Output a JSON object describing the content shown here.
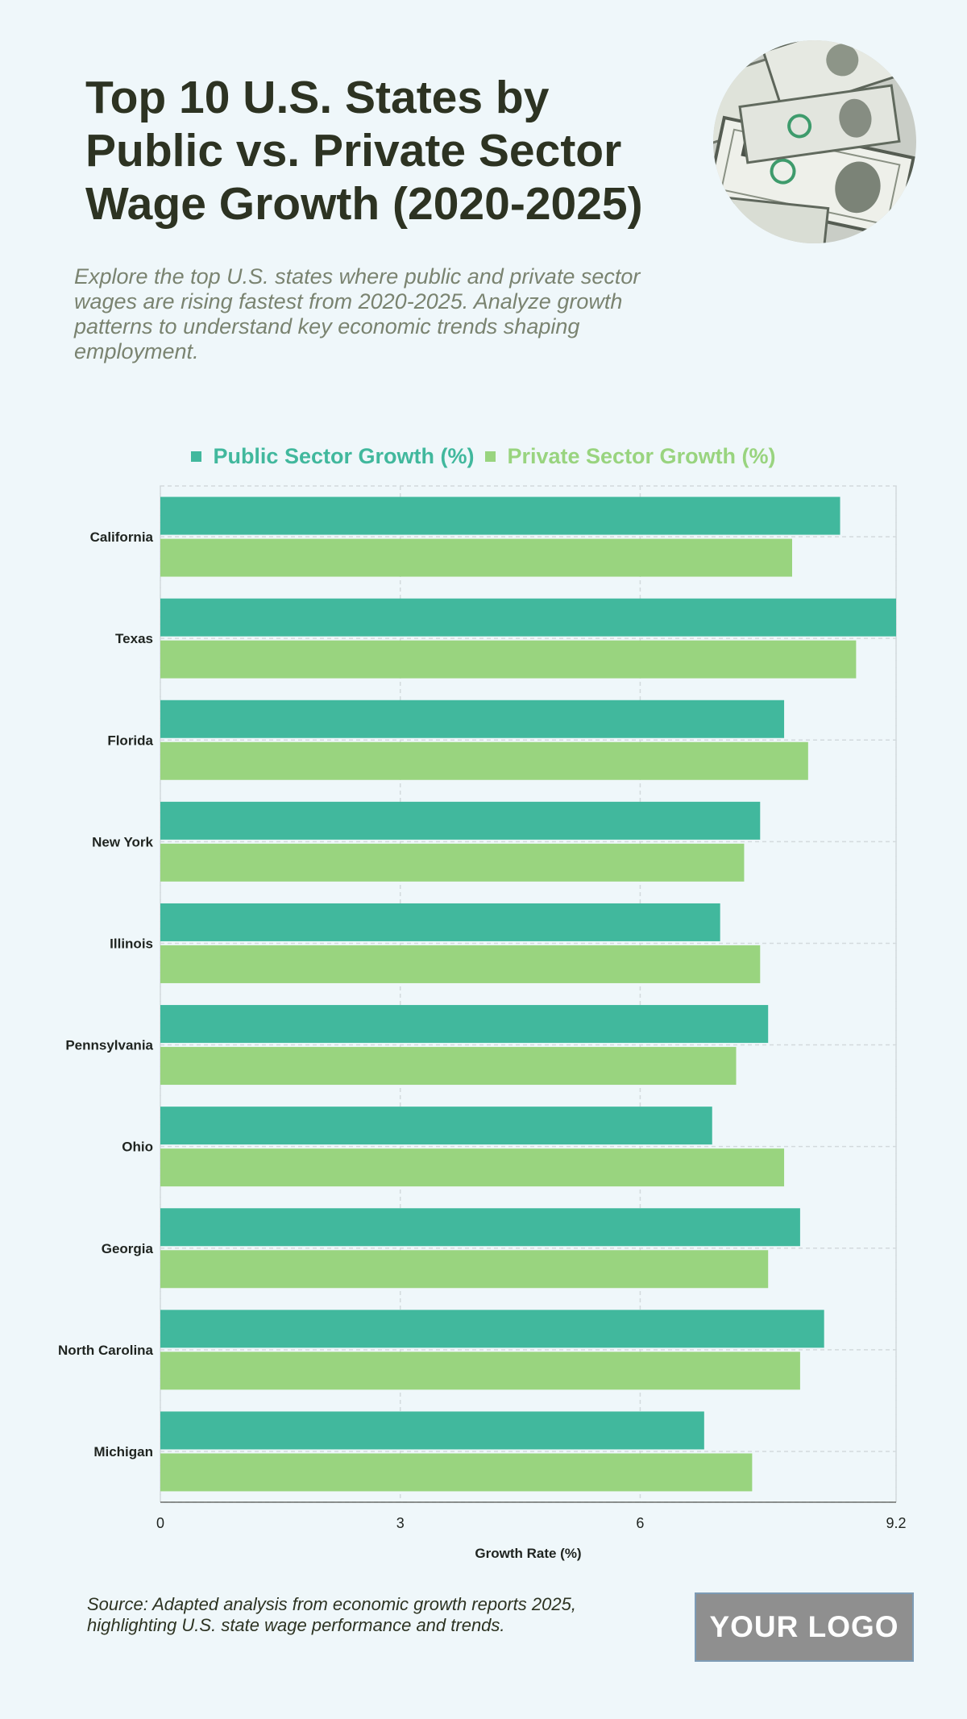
{
  "header": {
    "title": "Top 10 U.S. States by Public vs. Private Sector Wage Growth (2020-2025)",
    "subtitle": "Explore the top U.S. states where public and private sector wages are rising fastest from 2020-2025. Analyze growth patterns to understand key economic trends shaping employment."
  },
  "footer": {
    "source": "Source: Adapted analysis from economic growth reports 2025, highlighting U.S. state wage performance and trends.",
    "logo_text": "YOUR LOGO"
  },
  "colors": {
    "public": "#41b89d",
    "private": "#99d47f",
    "background": "#eff7fa",
    "text_dark": "#2d3322"
  },
  "chart_data": {
    "type": "bar",
    "orientation": "horizontal",
    "categories": [
      "California",
      "Texas",
      "Florida",
      "New York",
      "Illinois",
      "Pennsylvania",
      "Ohio",
      "Georgia",
      "North Carolina",
      "Michigan"
    ],
    "series": [
      {
        "name": "Public Sector Growth (%)",
        "values": [
          8.5,
          9.2,
          7.8,
          7.5,
          7.0,
          7.6,
          6.9,
          8.0,
          8.3,
          6.8
        ]
      },
      {
        "name": "Private Sector Growth (%)",
        "values": [
          7.9,
          8.7,
          8.1,
          7.3,
          7.5,
          7.2,
          7.8,
          7.6,
          8.0,
          7.4
        ]
      }
    ],
    "xlabel": "Growth Rate (%)",
    "ylabel": "",
    "xlim": [
      0,
      9.2
    ],
    "xticks": [
      "0",
      "3",
      "6",
      "9.2"
    ],
    "tick_values": [
      0,
      3,
      6,
      9.2
    ],
    "grid": true,
    "legend_position": "top"
  }
}
